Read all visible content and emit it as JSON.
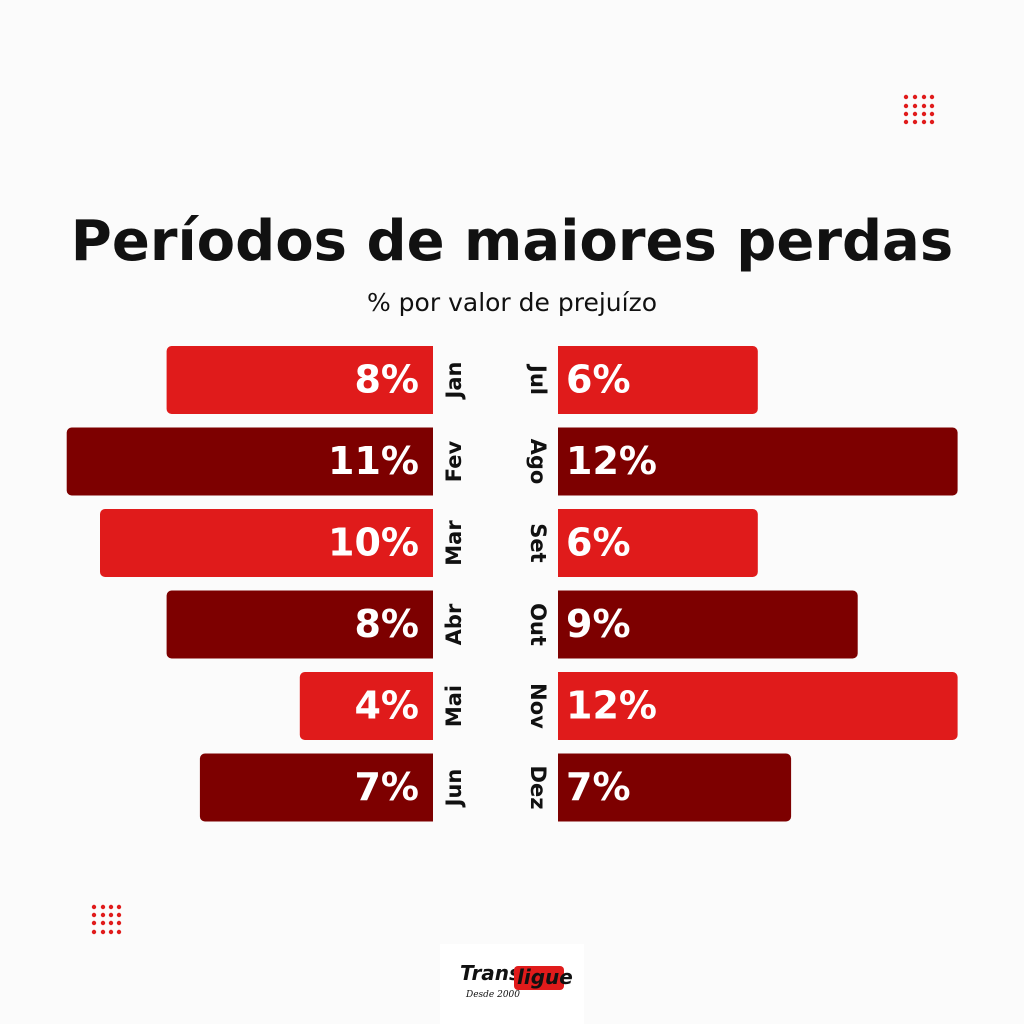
{
  "chart_data": {
    "type": "bar",
    "title": "Períodos de maiores perdas",
    "subtitle": "% por valor de prejuízo",
    "series": [
      {
        "categories": [
          "Jan",
          "Fev",
          "Mar",
          "Abr",
          "Mai",
          "Jun"
        ],
        "values": [
          8,
          11,
          10,
          8,
          4,
          7
        ],
        "value_labels": [
          "8%",
          "11%",
          "10%",
          "8%",
          "4%",
          "7%"
        ],
        "colors": [
          "#e01b1b",
          "#7d0000",
          "#e01b1b",
          "#7d0000",
          "#e01b1b",
          "#7d0000"
        ]
      },
      {
        "categories": [
          "Jul",
          "Ago",
          "Set",
          "Out",
          "Nov",
          "Dez"
        ],
        "values": [
          6,
          12,
          6,
          9,
          12,
          7
        ],
        "value_labels": [
          "6%",
          "12%",
          "6%",
          "9%",
          "12%",
          "7%"
        ],
        "colors": [
          "#e01b1b",
          "#7d0000",
          "#e01b1b",
          "#7d0000",
          "#e01b1b",
          "#7d0000"
        ]
      }
    ]
  },
  "brand": {
    "name_a": "Trans",
    "name_b": "ligue",
    "tagline": "Desde 2000"
  }
}
